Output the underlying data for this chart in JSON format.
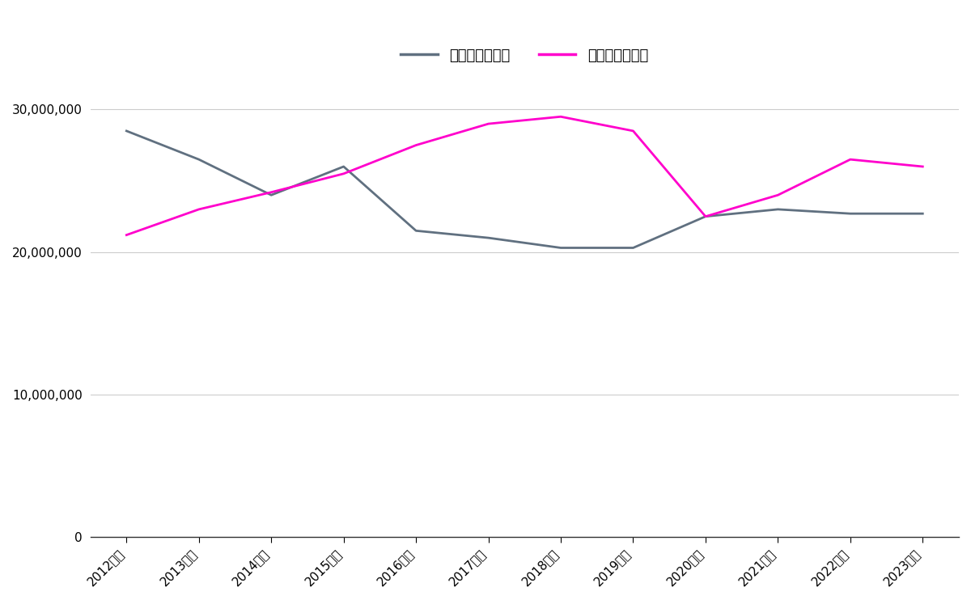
{
  "years": [
    "2012年度",
    "2013年度",
    "2014年度",
    "2015年度",
    "2016年度",
    "2017年度",
    "2018年度",
    "2019年度",
    "2020年度",
    "2021年度",
    "2022年度",
    "2023年度"
  ],
  "seekers": [
    28500000,
    26500000,
    24000000,
    26000000,
    21500000,
    21000000,
    20300000,
    20300000,
    22500000,
    23000000,
    22700000,
    22700000
  ],
  "jobs": [
    21200000,
    23000000,
    24200000,
    25500000,
    27500000,
    29000000,
    29500000,
    28500000,
    22500000,
    24000000,
    26500000,
    26000000
  ],
  "seeker_color": "#607080",
  "job_color": "#ff00cc",
  "legend_seeker": "月間有効求職者",
  "legend_job": "月間有効求人数",
  "ylim": [
    0,
    32000000
  ],
  "yticks": [
    0,
    10000000,
    20000000,
    30000000
  ],
  "grid_color": "#cccccc",
  "bg_color": "#ffffff",
  "line_width": 2.0
}
